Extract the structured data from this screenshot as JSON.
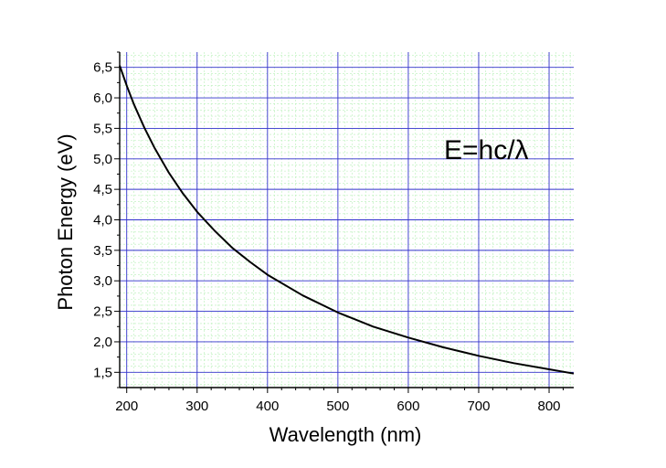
{
  "chart_data": {
    "type": "line",
    "xlabel": "Wavelength (nm)",
    "ylabel": "Photon Energy (eV)",
    "annotation": "E=hc/λ",
    "xlim": [
      190,
      835
    ],
    "ylim": [
      1.25,
      6.75
    ],
    "x_ticks": [
      200,
      300,
      400,
      500,
      600,
      700,
      800
    ],
    "x_tick_labels": [
      "200",
      "300",
      "400",
      "500",
      "600",
      "700",
      "800"
    ],
    "y_ticks": [
      1.5,
      2.0,
      2.5,
      3.0,
      3.5,
      4.0,
      4.5,
      5.0,
      5.5,
      6.0,
      6.5
    ],
    "y_tick_labels": [
      "1,5",
      "2,0",
      "2,5",
      "3,0",
      "3,5",
      "4,0",
      "4,5",
      "5,0",
      "5,5",
      "6,0",
      "6,5"
    ],
    "grid": true,
    "x_minor_step": 10,
    "y_minor_step": 0.1,
    "colors": {
      "major_grid": "#3333cc",
      "minor_grid": "#b8f0b8",
      "line": "#000000",
      "axis": "#000000"
    },
    "series": [
      {
        "x": [
          190,
          200,
          210,
          225,
          240,
          260,
          280,
          300,
          325,
          350,
          375,
          400,
          450,
          500,
          550,
          600,
          650,
          700,
          750,
          800,
          835
        ],
        "y": [
          6.53,
          6.2,
          5.9,
          5.51,
          5.17,
          4.77,
          4.43,
          4.13,
          3.82,
          3.54,
          3.31,
          3.1,
          2.76,
          2.48,
          2.25,
          2.07,
          1.91,
          1.77,
          1.65,
          1.55,
          1.48
        ]
      }
    ]
  }
}
